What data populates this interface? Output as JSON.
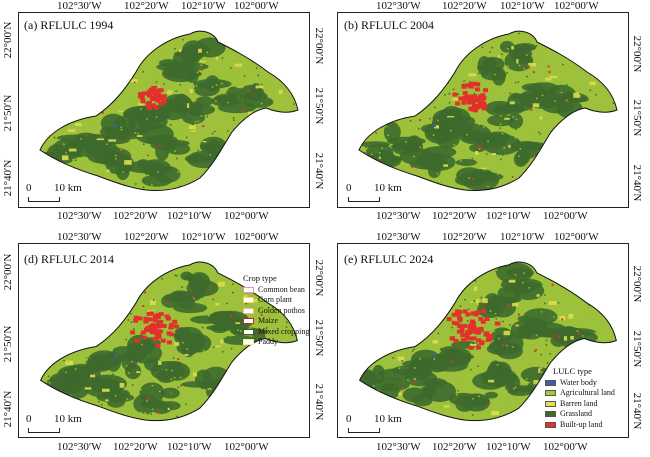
{
  "panels": [
    {
      "title": "(a) RFLULC 1994",
      "scale_zero": "0",
      "scale_label": "10 km"
    },
    {
      "title": "(b) RFLULC 2004",
      "scale_zero": "0",
      "scale_label": "10 km"
    },
    {
      "title": "(d) RFLULC 2014",
      "scale_zero": "0",
      "scale_label": "10 km"
    },
    {
      "title": "(e) RFLULC 2024",
      "scale_zero": "0",
      "scale_label": "10 km"
    }
  ],
  "longitude_labels": [
    "102°30′W",
    "102°20′W",
    "102°10′W",
    "102°00′W"
  ],
  "latitude_labels": [
    "22°00′N",
    "21°50′N",
    "21°40′N"
  ],
  "crop_legend": {
    "title": "Crop type",
    "items": [
      {
        "label": "Common bean",
        "color": "#e58fd0"
      },
      {
        "label": "Corn plant",
        "color": "#f2d35c"
      },
      {
        "label": "Golden pothos",
        "color": "#f1b48f"
      },
      {
        "label": "Maize",
        "color": "#b0303a"
      },
      {
        "label": "Mixed cropping",
        "color": "#4a5a2f"
      },
      {
        "label": "Paddy",
        "color": "#f7f08a"
      }
    ]
  },
  "lulc_legend": {
    "title": "LULC type",
    "items": [
      {
        "label": "Water body",
        "color": "#3f5fa8"
      },
      {
        "label": "Agricultural land",
        "color": "#a6c73a"
      },
      {
        "label": "Barren land",
        "color": "#e3e052"
      },
      {
        "label": "Grassland",
        "color": "#3f6a2c"
      },
      {
        "label": "Built-up land",
        "color": "#e2312c"
      }
    ]
  },
  "colors": {
    "agricultural": "#9dc13a",
    "grassland": "#3d6a2c",
    "barren": "#dede4e",
    "builtup": "#e2312c",
    "water": "#3f5fa8"
  }
}
